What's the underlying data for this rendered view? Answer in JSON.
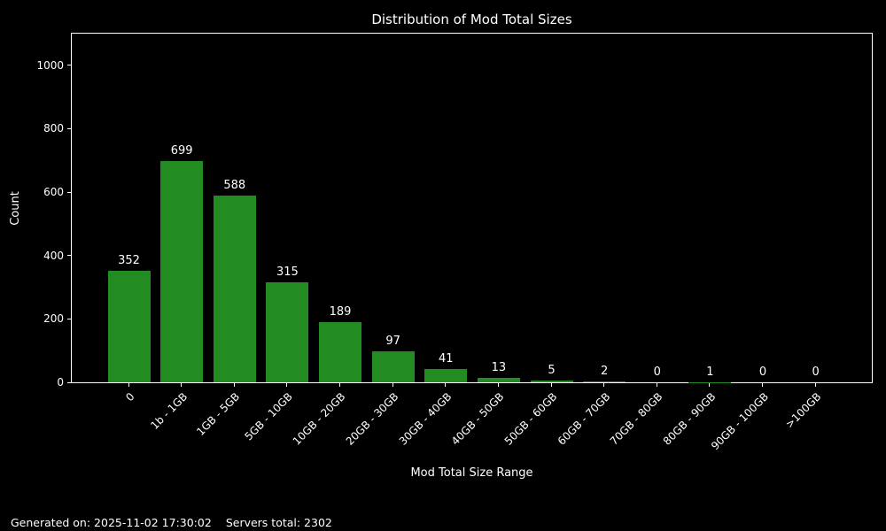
{
  "title": "Distribution of Mod Total Sizes",
  "footer": {
    "generated_on": "Generated on: 2025-11-02 17:30:02",
    "servers_total": "Servers total: 2302"
  },
  "colors": {
    "background": "#000000",
    "text": "#ffffff",
    "bar": "#228B22",
    "spine": "#ffffff"
  },
  "chart_data": {
    "type": "bar",
    "title": "Distribution of Mod Total Sizes",
    "xlabel": "Mod Total Size Range",
    "ylabel": "Count",
    "categories": [
      "0",
      "1b - 1GB",
      "1GB - 5GB",
      "5GB - 10GB",
      "10GB - 20GB",
      "20GB - 30GB",
      "30GB - 40GB",
      "40GB - 50GB",
      "50GB - 60GB",
      "60GB - 70GB",
      "70GB - 80GB",
      "80GB - 90GB",
      "90GB - 100GB",
      ">100GB"
    ],
    "values": [
      352,
      699,
      588,
      315,
      189,
      97,
      41,
      13,
      5,
      2,
      0,
      1,
      0,
      0
    ],
    "yticks": [
      0,
      200,
      400,
      600,
      800,
      1000
    ],
    "ylim": [
      0,
      1100
    ],
    "grid": false,
    "legend": null,
    "bar_labels_shown": true
  }
}
